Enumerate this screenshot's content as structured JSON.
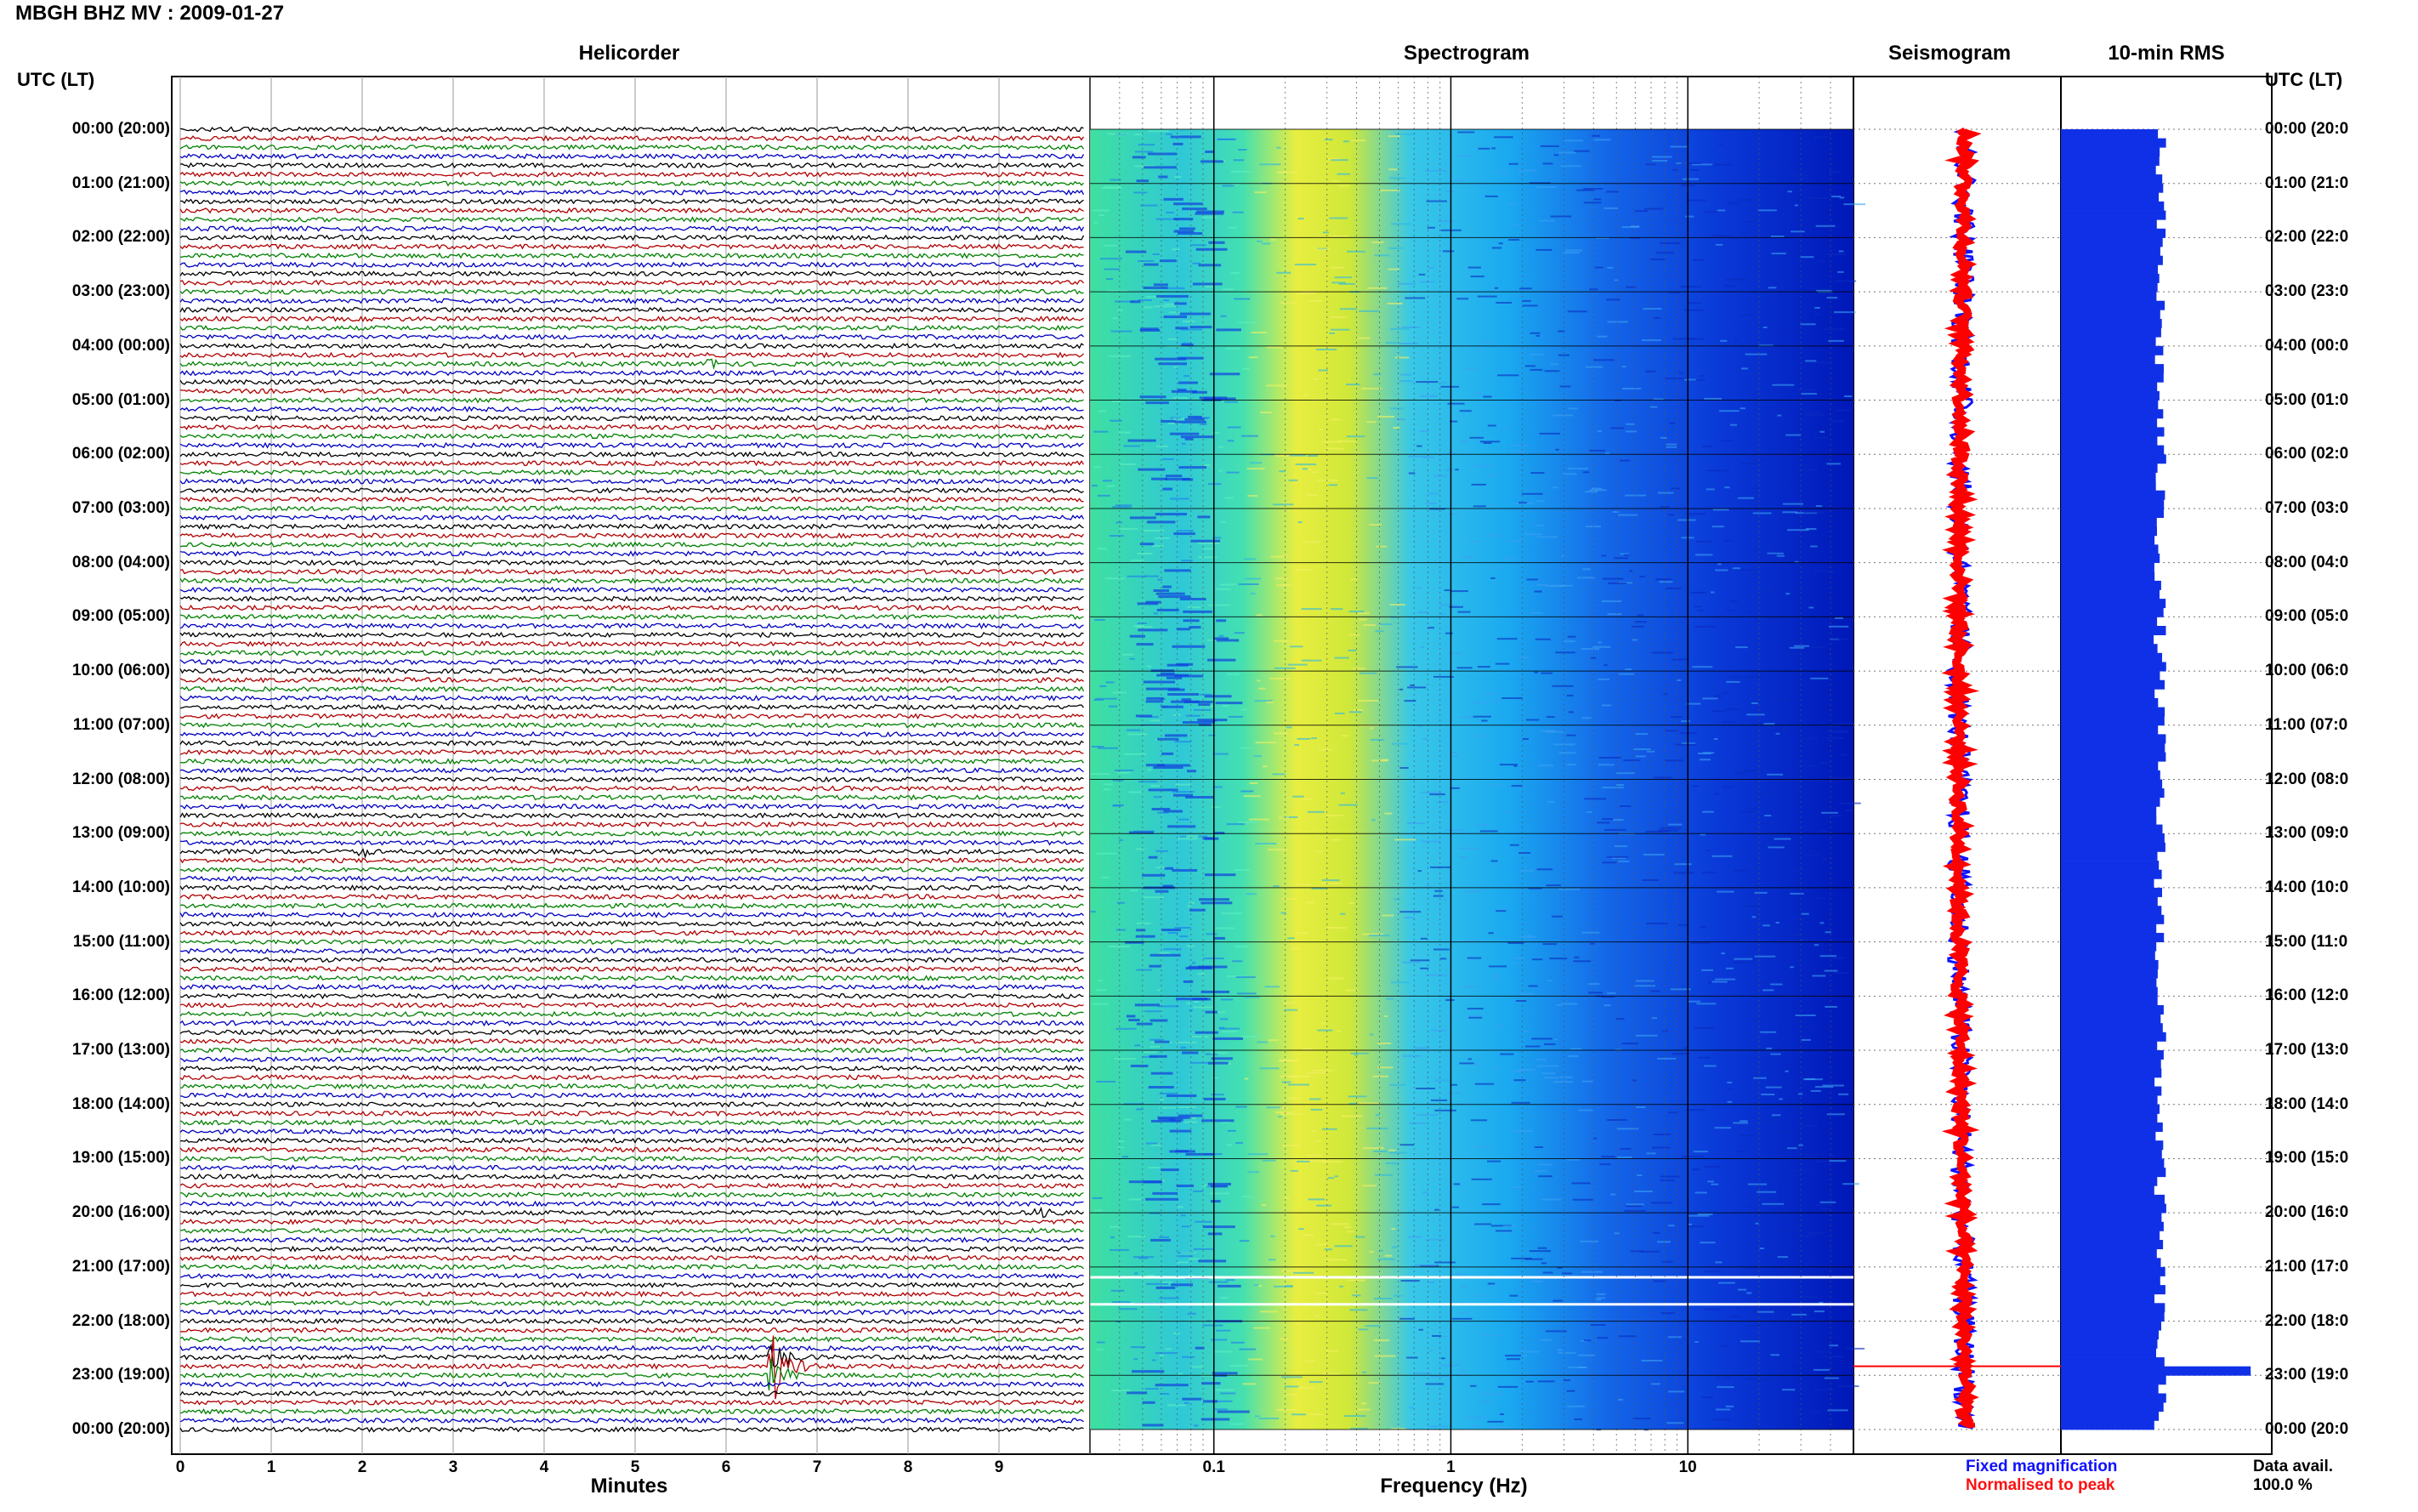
{
  "station_title": "MBGH BHZ MV : 2009-01-27",
  "panels": {
    "helicorder": "Helicorder",
    "spectrogram": "Spectrogram",
    "seismogram": "Seismogram",
    "rms": "10-min RMS"
  },
  "utc_header_left": "UTC (LT)",
  "utc_header_right": "UTC (LT)",
  "time_labels_left": [
    "00:00 (20:00)",
    "01:00 (21:00)",
    "02:00 (22:00)",
    "03:00 (23:00)",
    "04:00 (00:00)",
    "05:00 (01:00)",
    "06:00 (02:00)",
    "07:00 (03:00)",
    "08:00 (04:00)",
    "09:00 (05:00)",
    "10:00 (06:00)",
    "11:00 (07:00)",
    "12:00 (08:00)",
    "13:00 (09:00)",
    "14:00 (10:00)",
    "15:00 (11:00)",
    "16:00 (12:00)",
    "17:00 (13:00)",
    "18:00 (14:00)",
    "19:00 (15:00)",
    "20:00 (16:00)",
    "21:00 (17:00)",
    "22:00 (18:00)",
    "23:00 (19:00)",
    "00:00 (20:00)"
  ],
  "time_labels_right": [
    "00:00 (20:0",
    "01:00 (21:0",
    "02:00 (22:0",
    "03:00 (23:0",
    "04:00 (00:0",
    "05:00 (01:0",
    "06:00 (02:0",
    "07:00 (03:0",
    "08:00 (04:0",
    "09:00 (05:0",
    "10:00 (06:0",
    "11:00 (07:0",
    "12:00 (08:0",
    "13:00 (09:0",
    "14:00 (10:0",
    "15:00 (11:0",
    "16:00 (12:0",
    "17:00 (13:0",
    "18:00 (14:0",
    "19:00 (15:0",
    "20:00 (16:0",
    "21:00 (17:0",
    "22:00 (18:0",
    "23:00 (19:0",
    "00:00 (20:0"
  ],
  "minutes_ticks": [
    "0",
    "1",
    "2",
    "3",
    "4",
    "5",
    "6",
    "7",
    "8",
    "9"
  ],
  "minutes_label": "Minutes",
  "freq_ticks": [
    "0.1",
    "1",
    "10"
  ],
  "freq_label": "Frequency (Hz)",
  "legend_fixed": "Fixed magnification",
  "legend_normalised": "Normalised to peak",
  "data_avail_label": "Data avail.",
  "data_avail_value": "100.0 %",
  "colors": {
    "trace_cycle": [
      "#000000",
      "#b00000",
      "#008000",
      "#0000c0"
    ],
    "seismo_fixed": "#1010ff",
    "seismo_norm": "#ff0000",
    "rms_bar": "#1030e8"
  },
  "chart_data": [
    {
      "type": "line",
      "title": "Helicorder",
      "xlabel": "Minutes",
      "xlim": [
        0,
        10
      ],
      "ylim": [
        "00:00",
        "24:00"
      ],
      "row_minutes": 10,
      "rows": 144,
      "events": [
        {
          "time_utc": "22:50",
          "minute": 6.5,
          "note": "large event"
        },
        {
          "time_utc": "20:00",
          "minute": 9.4,
          "note": "small event"
        },
        {
          "time_utc": "13:20",
          "minute": 2.0,
          "note": "small event"
        },
        {
          "time_utc": "04:20",
          "minute": 5.8,
          "note": "small event"
        }
      ]
    },
    {
      "type": "heatmap",
      "title": "Spectrogram",
      "xlabel": "Frequency (Hz)",
      "x_scale": "log",
      "xlim": [
        0.03,
        50
      ],
      "peak_band_hz": [
        0.2,
        0.35
      ],
      "data_gaps_utc": [
        "21:10",
        "21:40"
      ]
    },
    {
      "type": "line",
      "title": "Seismogram",
      "series": [
        {
          "name": "Fixed magnification"
        },
        {
          "name": "Normalised to peak"
        }
      ],
      "event_utc": "22:50"
    },
    {
      "type": "bar",
      "title": "10-min RMS",
      "bins": 144,
      "relative_level_typical": 0.47,
      "peak": {
        "time_utc": "22:50",
        "relative_level": 0.9
      }
    }
  ]
}
